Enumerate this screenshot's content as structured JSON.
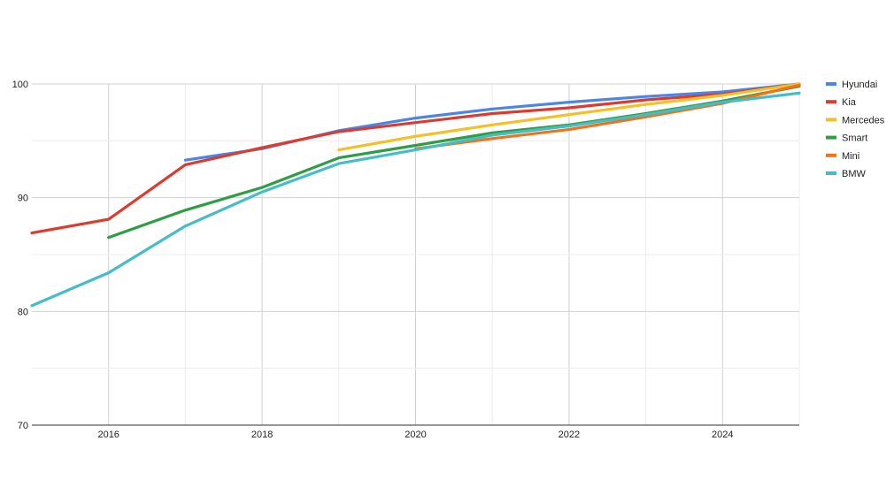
{
  "chart_data": {
    "type": "line",
    "title": "",
    "xlabel": "",
    "ylabel": "",
    "xlim": [
      2015,
      2025
    ],
    "ylim": [
      70,
      100
    ],
    "x_ticks": [
      "2016",
      "2018",
      "2020",
      "2022",
      "2024"
    ],
    "y_ticks": [
      "70",
      "80",
      "90",
      "100"
    ],
    "grid": true,
    "legend_position": "right",
    "series": [
      {
        "name": "Hyundai",
        "color": "#4a86e8",
        "points": [
          [
            2017,
            93.3
          ],
          [
            2018,
            94.3
          ],
          [
            2019,
            95.9
          ],
          [
            2020,
            97.0
          ],
          [
            2021,
            97.8
          ],
          [
            2022,
            98.4
          ],
          [
            2023,
            98.9
          ],
          [
            2024,
            99.3
          ],
          [
            2025,
            100.0
          ]
        ]
      },
      {
        "name": "Kia",
        "color": "#dc3b2f",
        "points": [
          [
            2015,
            86.9
          ],
          [
            2016,
            88.1
          ],
          [
            2017,
            92.9
          ],
          [
            2018,
            94.4
          ],
          [
            2019,
            95.8
          ],
          [
            2020,
            96.6
          ],
          [
            2021,
            97.4
          ],
          [
            2022,
            97.9
          ],
          [
            2023,
            98.6
          ],
          [
            2024,
            99.1
          ],
          [
            2025,
            100.0
          ]
        ]
      },
      {
        "name": "Mercedes",
        "color": "#f4c028",
        "points": [
          [
            2019,
            94.2
          ],
          [
            2020,
            95.4
          ],
          [
            2021,
            96.4
          ],
          [
            2022,
            97.3
          ],
          [
            2023,
            98.2
          ],
          [
            2024,
            99.0
          ],
          [
            2025,
            100.0
          ]
        ]
      },
      {
        "name": "Smart",
        "color": "#2e9e44",
        "points": [
          [
            2016,
            86.5
          ],
          [
            2017,
            88.9
          ],
          [
            2018,
            90.9
          ],
          [
            2019,
            93.5
          ],
          [
            2020,
            94.6
          ],
          [
            2021,
            95.7
          ],
          [
            2022,
            96.4
          ],
          [
            2023,
            97.4
          ],
          [
            2024,
            98.5
          ],
          [
            2025,
            99.8
          ]
        ]
      },
      {
        "name": "Mini",
        "color": "#f2711c",
        "points": [
          [
            2020,
            94.3
          ],
          [
            2021,
            95.2
          ],
          [
            2022,
            96.0
          ],
          [
            2023,
            97.1
          ],
          [
            2024,
            98.3
          ],
          [
            2025,
            99.9
          ]
        ]
      },
      {
        "name": "BMW",
        "color": "#46bdc6",
        "points": [
          [
            2015,
            80.5
          ],
          [
            2016,
            83.4
          ],
          [
            2017,
            87.5
          ],
          [
            2018,
            90.5
          ],
          [
            2019,
            93.0
          ],
          [
            2020,
            94.2
          ],
          [
            2021,
            95.5
          ],
          [
            2022,
            96.3
          ],
          [
            2023,
            97.3
          ],
          [
            2024,
            98.4
          ],
          [
            2025,
            99.2
          ]
        ]
      }
    ]
  }
}
